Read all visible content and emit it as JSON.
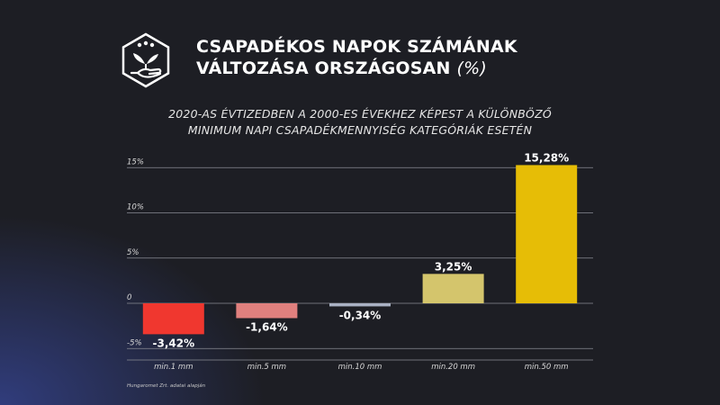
{
  "title": {
    "line1": "CSAPADÉKOS NAPOK SZÁMÁNAK",
    "line2": "VÁLTOZÁSA ORSZÁGOSAN",
    "unit": "(%)"
  },
  "subtitle": {
    "line1": "2020-AS ÉVTIZEDBEN A 2000-ES ÉVEKHEZ KÉPEST A KÜLÖNBÖZŐ",
    "line2": "MINIMUM NAPI CSAPADÉKMENNYISÉG KATEGÓRIÁK ESETÉN"
  },
  "source": "Hungaromet Zrt. adatai alapján",
  "logo_icon": "plant-in-hand-rain-icon",
  "chart_data": {
    "type": "bar",
    "categories": [
      "min.1 mm",
      "min.5 mm",
      "min.10 mm",
      "min.20 mm",
      "min.50 mm"
    ],
    "values": [
      -3.42,
      -1.64,
      -0.34,
      3.25,
      15.28
    ],
    "value_labels": [
      "-3,42%",
      "-1,64%",
      "-0,34%",
      "3,25%",
      "15,28%"
    ],
    "bar_colors": [
      "#f0372f",
      "#e0807e",
      "#aab2c4",
      "#d4c56c",
      "#e6bd06"
    ],
    "yticks": [
      {
        "value": 15,
        "label": "15%"
      },
      {
        "value": 10,
        "label": "10%"
      },
      {
        "value": 5,
        "label": "5%"
      },
      {
        "value": 0,
        "label": "0"
      },
      {
        "value": -5,
        "label": "-5%"
      }
    ],
    "ylim": [
      -6.5,
      15.5
    ],
    "grid": true
  }
}
